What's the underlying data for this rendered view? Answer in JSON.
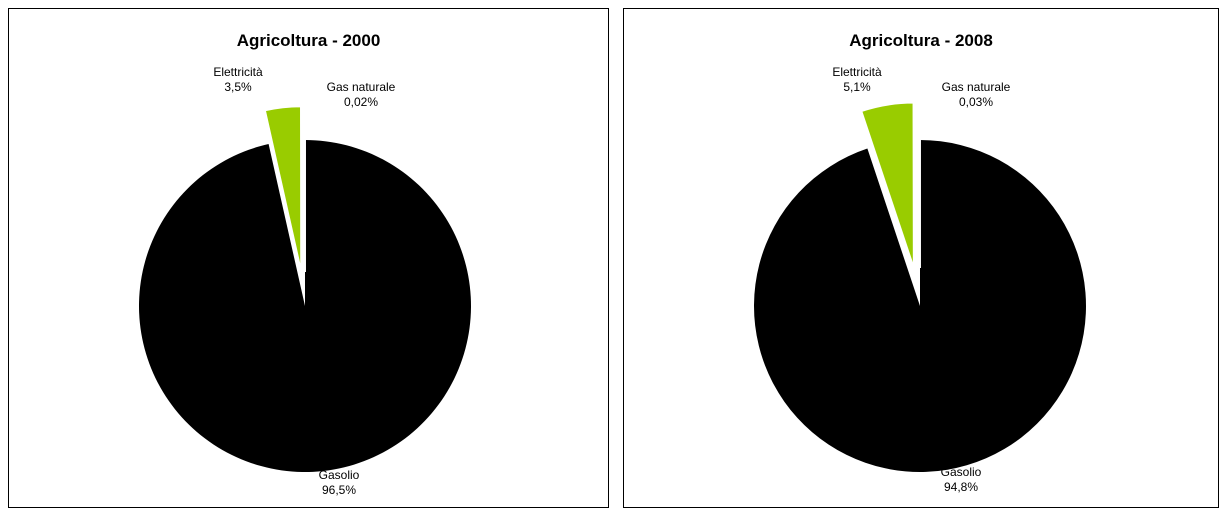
{
  "chart_data": [
    {
      "type": "pie",
      "title": "Agricoltura - 2000",
      "slices": [
        {
          "label": "Gasolio",
          "value": 96.5,
          "value_label": "96,5%",
          "color": "#000000",
          "exploded": false
        },
        {
          "label": "Elettricità",
          "value": 3.5,
          "value_label": "3,5%",
          "color": "#99cc00",
          "exploded": true
        },
        {
          "label": "Gas naturale",
          "value": 0.02,
          "value_label": "0,02%",
          "color": "#ff6600",
          "exploded": true
        }
      ]
    },
    {
      "type": "pie",
      "title": "Agricoltura - 2008",
      "slices": [
        {
          "label": "Gasolio",
          "value": 94.8,
          "value_label": "94,8%",
          "color": "#000000",
          "exploded": false
        },
        {
          "label": "Elettricità",
          "value": 5.1,
          "value_label": "5,1%",
          "color": "#99cc00",
          "exploded": true
        },
        {
          "label": "Gas naturale",
          "value": 0.03,
          "value_label": "0,03%",
          "color": "#ff6600",
          "exploded": true
        }
      ]
    }
  ]
}
